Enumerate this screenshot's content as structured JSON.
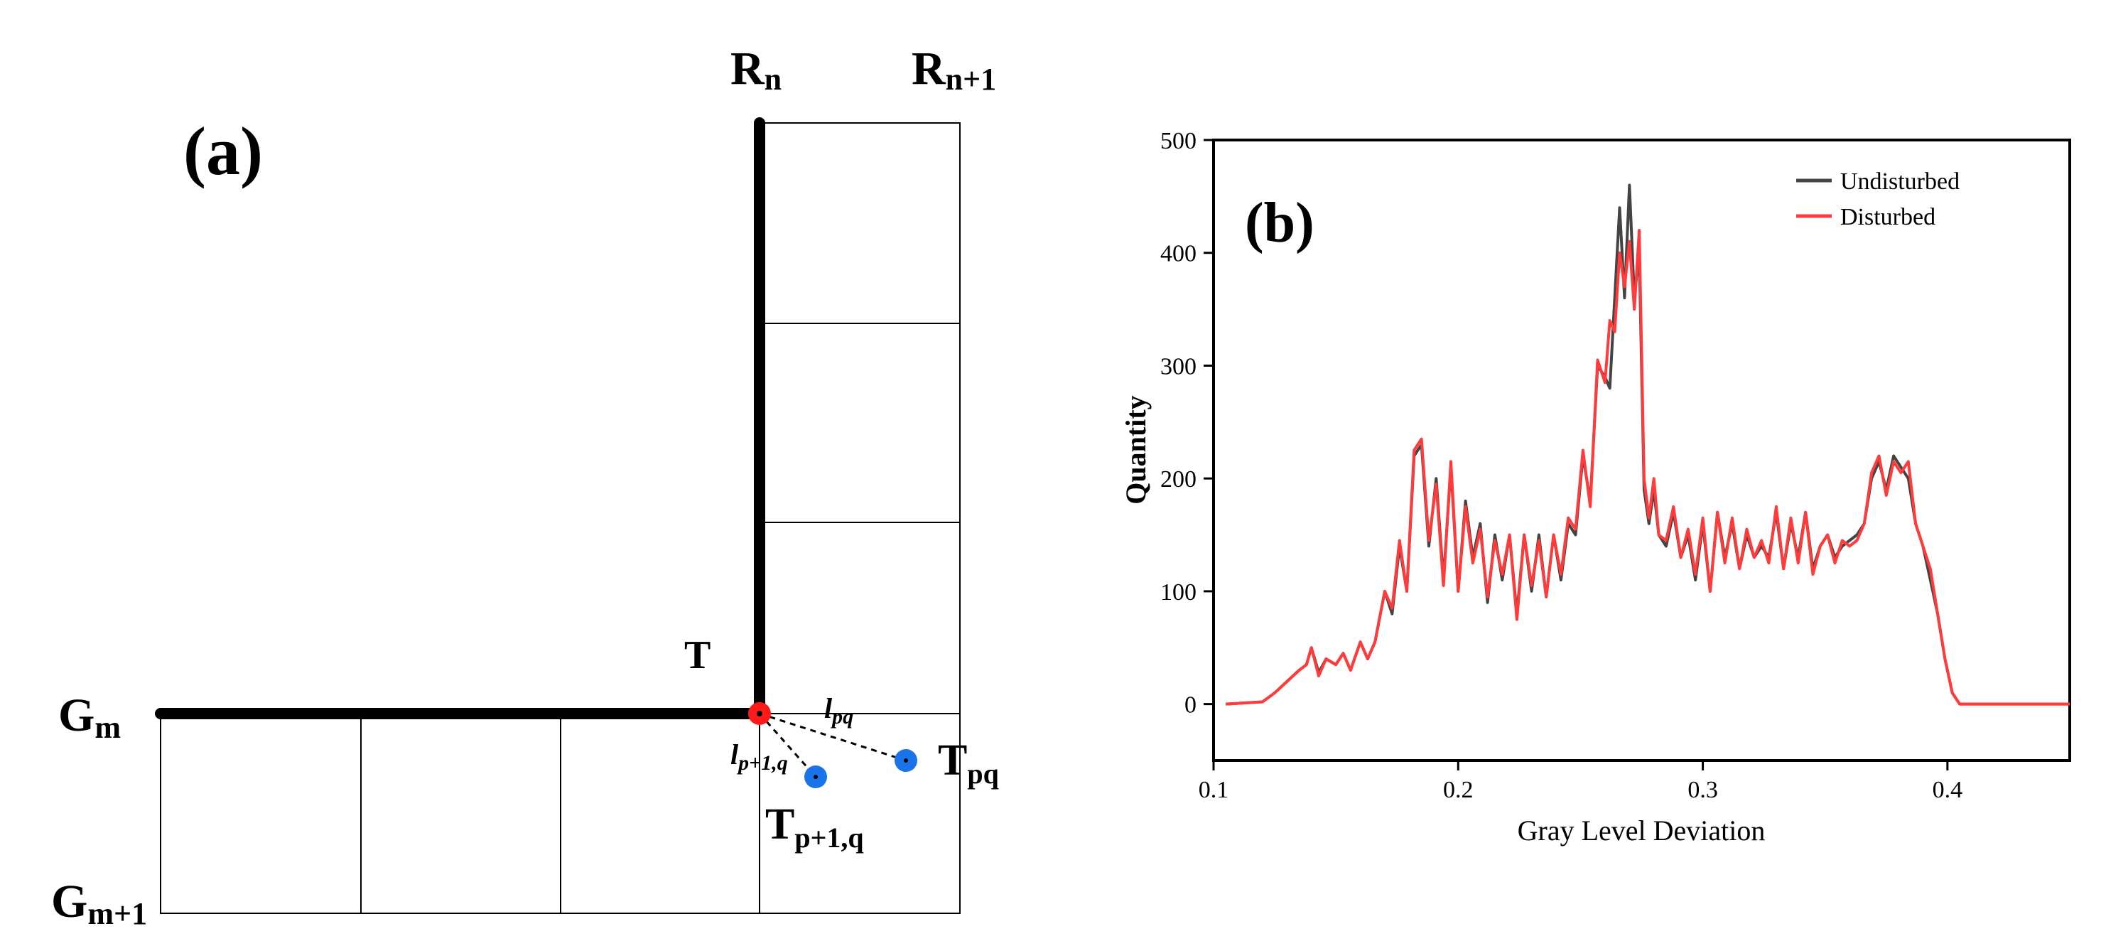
{
  "panel_a": {
    "label": "(a)",
    "row_label_top": "R",
    "row_label_top_sub": "n",
    "row_label_next": "R",
    "row_label_next_sub": "n+1",
    "col_label_left": "G",
    "col_label_left_sub": "m",
    "col_label_next": "G",
    "col_label_next_sub": "m+1",
    "point_T": "T",
    "point_Tpq": "T",
    "point_Tpq_sub": "pq",
    "point_Tp1q": "T",
    "point_Tp1q_sub": "p+1,q",
    "dist_lpq": "l",
    "dist_lpq_sub": "pq",
    "dist_lp1q": "l",
    "dist_lp1q_sub": "p+1,q",
    "colors": {
      "red_point": "#ff1a1a",
      "blue_point": "#1a73e8",
      "line": "#000000"
    }
  },
  "chart_data": {
    "type": "line",
    "panel_label": "(b)",
    "xlabel": "Gray Level Deviation",
    "ylabel": "Quantity",
    "xlim": [
      0.1,
      0.45
    ],
    "ylim": [
      -50,
      500
    ],
    "xticks": [
      0.1,
      0.2,
      0.3,
      0.4
    ],
    "xtick_labels": [
      "0.1",
      "0.2",
      "0.3",
      "0.4"
    ],
    "yticks": [
      0,
      100,
      200,
      300,
      400,
      500
    ],
    "ytick_labels": [
      "0",
      "100",
      "200",
      "300",
      "400",
      "500"
    ],
    "legend_position": "top-right",
    "series": [
      {
        "name": "Undisturbed",
        "color": "#444444",
        "x": [
          0.105,
          0.12,
          0.125,
          0.13,
          0.135,
          0.138,
          0.14,
          0.143,
          0.146,
          0.15,
          0.153,
          0.156,
          0.16,
          0.163,
          0.166,
          0.17,
          0.173,
          0.176,
          0.179,
          0.182,
          0.185,
          0.188,
          0.191,
          0.194,
          0.197,
          0.2,
          0.203,
          0.206,
          0.209,
          0.212,
          0.215,
          0.218,
          0.221,
          0.224,
          0.227,
          0.23,
          0.233,
          0.236,
          0.239,
          0.242,
          0.245,
          0.248,
          0.251,
          0.254,
          0.257,
          0.26,
          0.262,
          0.264,
          0.266,
          0.268,
          0.27,
          0.272,
          0.274,
          0.276,
          0.278,
          0.28,
          0.282,
          0.285,
          0.288,
          0.291,
          0.294,
          0.297,
          0.3,
          0.303,
          0.306,
          0.309,
          0.312,
          0.315,
          0.318,
          0.321,
          0.324,
          0.327,
          0.33,
          0.333,
          0.336,
          0.339,
          0.342,
          0.345,
          0.348,
          0.351,
          0.354,
          0.357,
          0.36,
          0.363,
          0.366,
          0.369,
          0.372,
          0.375,
          0.378,
          0.381,
          0.384,
          0.387,
          0.39,
          0.393,
          0.396,
          0.399,
          0.402,
          0.405,
          0.408,
          0.411,
          0.414,
          0.417,
          0.42,
          0.45
        ],
        "values": [
          0,
          2,
          10,
          20,
          30,
          35,
          50,
          28,
          40,
          35,
          45,
          30,
          55,
          40,
          55,
          100,
          80,
          140,
          100,
          220,
          230,
          140,
          200,
          110,
          210,
          100,
          180,
          130,
          160,
          90,
          150,
          110,
          150,
          80,
          150,
          100,
          150,
          95,
          150,
          110,
          160,
          150,
          220,
          180,
          300,
          290,
          280,
          360,
          440,
          360,
          460,
          360,
          400,
          190,
          160,
          190,
          150,
          140,
          170,
          130,
          150,
          110,
          160,
          100,
          170,
          130,
          160,
          120,
          150,
          130,
          140,
          130,
          170,
          120,
          160,
          130,
          170,
          120,
          140,
          150,
          130,
          140,
          145,
          150,
          160,
          200,
          215,
          190,
          220,
          210,
          200,
          160,
          140,
          110,
          80,
          40,
          10,
          0,
          0,
          0,
          0,
          0,
          0,
          0
        ]
      },
      {
        "name": "Disturbed",
        "color": "#ff3b3b",
        "x": [
          0.105,
          0.12,
          0.125,
          0.13,
          0.135,
          0.138,
          0.14,
          0.143,
          0.146,
          0.15,
          0.153,
          0.156,
          0.16,
          0.163,
          0.166,
          0.17,
          0.173,
          0.176,
          0.179,
          0.182,
          0.185,
          0.188,
          0.191,
          0.194,
          0.197,
          0.2,
          0.203,
          0.206,
          0.209,
          0.212,
          0.215,
          0.218,
          0.221,
          0.224,
          0.227,
          0.23,
          0.233,
          0.236,
          0.239,
          0.242,
          0.245,
          0.248,
          0.251,
          0.254,
          0.257,
          0.26,
          0.262,
          0.264,
          0.266,
          0.268,
          0.27,
          0.272,
          0.274,
          0.276,
          0.278,
          0.28,
          0.282,
          0.285,
          0.288,
          0.291,
          0.294,
          0.297,
          0.3,
          0.303,
          0.306,
          0.309,
          0.312,
          0.315,
          0.318,
          0.321,
          0.324,
          0.327,
          0.33,
          0.333,
          0.336,
          0.339,
          0.342,
          0.345,
          0.348,
          0.351,
          0.354,
          0.357,
          0.36,
          0.363,
          0.366,
          0.369,
          0.372,
          0.375,
          0.378,
          0.381,
          0.384,
          0.387,
          0.39,
          0.393,
          0.396,
          0.399,
          0.402,
          0.405,
          0.408,
          0.411,
          0.414,
          0.417,
          0.42,
          0.45
        ],
        "values": [
          0,
          2,
          10,
          20,
          30,
          35,
          50,
          25,
          40,
          35,
          45,
          30,
          55,
          40,
          55,
          100,
          85,
          145,
          100,
          225,
          235,
          145,
          195,
          105,
          215,
          100,
          175,
          125,
          155,
          95,
          145,
          115,
          150,
          75,
          150,
          105,
          145,
          95,
          150,
          115,
          165,
          155,
          225,
          175,
          305,
          285,
          340,
          330,
          400,
          370,
          410,
          350,
          420,
          200,
          165,
          200,
          150,
          145,
          175,
          130,
          155,
          115,
          165,
          100,
          170,
          125,
          165,
          120,
          155,
          130,
          145,
          125,
          175,
          120,
          165,
          125,
          170,
          115,
          140,
          150,
          125,
          145,
          140,
          145,
          160,
          205,
          220,
          185,
          215,
          205,
          215,
          160,
          140,
          120,
          80,
          40,
          10,
          0,
          0,
          0,
          0,
          0,
          0,
          0
        ]
      }
    ]
  }
}
